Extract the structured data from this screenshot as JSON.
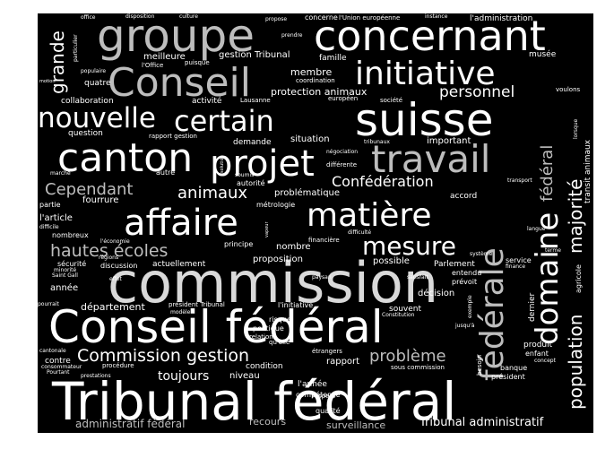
{
  "words": [
    {
      "text": "Tribunal fédéral",
      "color": "#ffffff"
    },
    {
      "text": "commission",
      "color": "#d9d9d9"
    },
    {
      "text": "Conseil fédéral",
      "color": "#ffffff"
    },
    {
      "text": "groupe",
      "color": "#bdbdbd"
    },
    {
      "text": "concernant",
      "color": "#ffffff"
    },
    {
      "text": "Conseil",
      "color": "#bdbdbd"
    },
    {
      "text": "initiative",
      "color": "#ffffff"
    },
    {
      "text": "suisse",
      "color": "#ffffff"
    },
    {
      "text": "nouvelle",
      "color": "#ffffff"
    },
    {
      "text": "certain",
      "color": "#ffffff"
    },
    {
      "text": "canton",
      "color": "#ffffff"
    },
    {
      "text": "projet",
      "color": "#ffffff"
    },
    {
      "text": "travail",
      "color": "#bdbdbd"
    },
    {
      "text": "affaire",
      "color": "#ffffff"
    },
    {
      "text": "matière",
      "color": "#ffffff"
    },
    {
      "text": "mesure",
      "color": "#ffffff"
    },
    {
      "text": "fédérale",
      "color": "#bdbdbd"
    },
    {
      "text": "domaine",
      "color": "#ffffff"
    },
    {
      "text": "majorité",
      "color": "#ffffff"
    },
    {
      "text": "fédéral",
      "color": "#bdbdbd"
    },
    {
      "text": "population",
      "color": "#ffffff"
    },
    {
      "text": "Commission gestion",
      "color": "#ffffff"
    },
    {
      "text": "hautes écoles",
      "color": "#bdbdbd"
    },
    {
      "text": "Cependant",
      "color": "#bdbdbd"
    },
    {
      "text": "animaux",
      "color": "#ffffff"
    },
    {
      "text": "Confédération",
      "color": "#ffffff"
    },
    {
      "text": "personnel",
      "color": "#ffffff"
    },
    {
      "text": "grande",
      "color": "#ffffff"
    },
    {
      "text": "problème",
      "color": "#bdbdbd"
    },
    {
      "text": "toujours",
      "color": "#ffffff"
    },
    {
      "text": "administratif fédéral",
      "color": "#bdbdbd"
    },
    {
      "text": "Tribunal administratif",
      "color": "#ffffff"
    },
    {
      "text": "surveillance",
      "color": "#bdbdbd"
    },
    {
      "text": "recours",
      "color": "#bdbdbd"
    },
    {
      "text": "département",
      "color": "#ffffff"
    },
    {
      "text": "protection animaux",
      "color": "#ffffff"
    },
    {
      "text": "membre",
      "color": "#ffffff"
    },
    {
      "text": "meilleure",
      "color": "#ffffff"
    },
    {
      "text": "gestion Tribunal",
      "color": "#ffffff"
    },
    {
      "text": "famille",
      "color": "#ffffff"
    },
    {
      "text": "musée",
      "color": "#ffffff"
    },
    {
      "text": "quatre",
      "color": "#ffffff"
    },
    {
      "text": "collaboration",
      "color": "#ffffff"
    },
    {
      "text": "activité",
      "color": "#ffffff"
    },
    {
      "text": "question",
      "color": "#ffffff"
    },
    {
      "text": "demande",
      "color": "#ffffff"
    },
    {
      "text": "situation",
      "color": "#ffffff"
    },
    {
      "text": "important",
      "color": "#ffffff"
    },
    {
      "text": "fourrure",
      "color": "#ffffff"
    },
    {
      "text": "l'article",
      "color": "#ffffff"
    },
    {
      "text": "nombreux",
      "color": "#ffffff"
    },
    {
      "text": "autorité",
      "color": "#ffffff"
    },
    {
      "text": "problématique",
      "color": "#ffffff"
    },
    {
      "text": "accord",
      "color": "#ffffff"
    },
    {
      "text": "nombre",
      "color": "#ffffff"
    },
    {
      "text": "proposition",
      "color": "#ffffff"
    },
    {
      "text": "possible",
      "color": "#ffffff"
    },
    {
      "text": "Parlement",
      "color": "#ffffff"
    },
    {
      "text": "entendu",
      "color": "#ffffff"
    },
    {
      "text": "prévoit",
      "color": "#ffffff"
    },
    {
      "text": "sécurité",
      "color": "#ffffff"
    },
    {
      "text": "discussion",
      "color": "#ffffff"
    },
    {
      "text": "actuellement",
      "color": "#ffffff"
    },
    {
      "text": "année",
      "color": "#ffffff"
    },
    {
      "text": "décision",
      "color": "#ffffff"
    },
    {
      "text": "service",
      "color": "#ffffff"
    },
    {
      "text": "finance",
      "color": "#ffffff"
    },
    {
      "text": "souvent",
      "color": "#ffffff"
    },
    {
      "text": "dernier",
      "color": "#ffffff"
    },
    {
      "text": "produit",
      "color": "#ffffff"
    },
    {
      "text": "enfant",
      "color": "#ffffff"
    },
    {
      "text": "concept",
      "color": "#ffffff"
    },
    {
      "text": "banque",
      "color": "#ffffff"
    },
    {
      "text": "président",
      "color": "#ffffff"
    },
    {
      "text": "rapport",
      "color": "#ffffff"
    },
    {
      "text": "condition",
      "color": "#ffffff"
    },
    {
      "text": "niveau",
      "color": "#ffffff"
    },
    {
      "text": "contre",
      "color": "#ffffff"
    },
    {
      "text": "procédure",
      "color": "#ffffff"
    },
    {
      "text": "l'année",
      "color": "#ffffff"
    },
    {
      "text": "compétence",
      "color": "#ffffff"
    },
    {
      "text": "qualité",
      "color": "#ffffff"
    },
    {
      "text": "respect",
      "color": "#ffffff"
    },
    {
      "text": "sous commission",
      "color": "#ffffff"
    },
    {
      "text": "étrangers",
      "color": "#ffffff"
    },
    {
      "text": "risque",
      "color": "#ffffff"
    },
    {
      "text": "politique",
      "color": "#ffffff"
    },
    {
      "text": "relation",
      "color": "#ffffff"
    },
    {
      "text": "qu'elle",
      "color": "#ffffff"
    },
    {
      "text": "président Tribunal",
      "color": "#ffffff"
    },
    {
      "text": "modèle",
      "color": "#ffffff"
    },
    {
      "text": "l'initiative",
      "color": "#ffffff"
    },
    {
      "text": "Constitution",
      "color": "#ffffff"
    },
    {
      "text": "office",
      "color": "#ffffff"
    },
    {
      "text": "disposition",
      "color": "#ffffff"
    },
    {
      "text": "culture",
      "color": "#ffffff"
    },
    {
      "text": "propose",
      "color": "#ffffff"
    },
    {
      "text": "concerne",
      "color": "#ffffff"
    },
    {
      "text": "l'Union européenne",
      "color": "#ffffff"
    },
    {
      "text": "instance",
      "color": "#ffffff"
    },
    {
      "text": "l'administration",
      "color": "#ffffff"
    },
    {
      "text": "prendre",
      "color": "#ffffff"
    },
    {
      "text": "particulier",
      "color": "#ffffff"
    },
    {
      "text": "l'Office",
      "color": "#ffffff"
    },
    {
      "text": "puisque",
      "color": "#ffffff"
    },
    {
      "text": "coordination",
      "color": "#ffffff"
    },
    {
      "text": "européen",
      "color": "#ffffff"
    },
    {
      "text": "société",
      "color": "#ffffff"
    },
    {
      "text": "voulons",
      "color": "#ffffff"
    },
    {
      "text": "Lausanne",
      "color": "#ffffff"
    },
    {
      "text": "rapport gestion",
      "color": "#ffffff"
    },
    {
      "text": "négociation",
      "color": "#ffffff"
    },
    {
      "text": "tribunaux",
      "color": "#ffffff"
    },
    {
      "text": "différente",
      "color": "#ffffff"
    },
    {
      "text": "autre",
      "color": "#ffffff"
    },
    {
      "text": "soumis",
      "color": "#ffffff"
    },
    {
      "text": "transport",
      "color": "#ffffff"
    },
    {
      "text": "métrologie",
      "color": "#ffffff"
    },
    {
      "text": "partie",
      "color": "#ffffff"
    },
    {
      "text": "marché",
      "color": "#ffffff"
    },
    {
      "text": "difficile",
      "color": "#ffffff"
    },
    {
      "text": "l'économie",
      "color": "#ffffff"
    },
    {
      "text": "principe",
      "color": "#ffffff"
    },
    {
      "text": "financière",
      "color": "#ffffff"
    },
    {
      "text": "difficulté",
      "color": "#ffffff"
    },
    {
      "text": "langue",
      "color": "#ffffff"
    },
    {
      "text": "terme",
      "color": "#ffffff"
    },
    {
      "text": "système",
      "color": "#ffffff"
    },
    {
      "text": "régions",
      "color": "#ffffff"
    },
    {
      "text": "minorité",
      "color": "#ffffff"
    },
    {
      "text": "Saint Gall",
      "color": "#ffffff"
    },
    {
      "text": "effet",
      "color": "#ffffff"
    },
    {
      "text": "paysan",
      "color": "#ffffff"
    },
    {
      "text": "satisfait",
      "color": "#ffffff"
    },
    {
      "text": "pourrait",
      "color": "#ffffff"
    },
    {
      "text": "exemple",
      "color": "#ffffff"
    },
    {
      "text": "jusqu'à",
      "color": "#ffffff"
    },
    {
      "text": "cantonale",
      "color": "#ffffff"
    },
    {
      "text": "consommateur",
      "color": "#ffffff"
    },
    {
      "text": "Pourtant",
      "color": "#ffffff"
    },
    {
      "text": "prestations",
      "color": "#ffffff"
    },
    {
      "text": "besoin",
      "color": "#ffffff"
    },
    {
      "text": "agricole",
      "color": "#ffffff"
    },
    {
      "text": "transit animaux",
      "color": "#ffffff"
    },
    {
      "text": "lorsque",
      "color": "#ffffff"
    },
    {
      "text": "populaire",
      "color": "#ffffff"
    },
    {
      "text": "motion",
      "color": "#ffffff"
    },
    {
      "text": "vapeur",
      "color": "#ffffff"
    },
    {
      "text": "solution",
      "color": "#ffffff"
    }
  ]
}
